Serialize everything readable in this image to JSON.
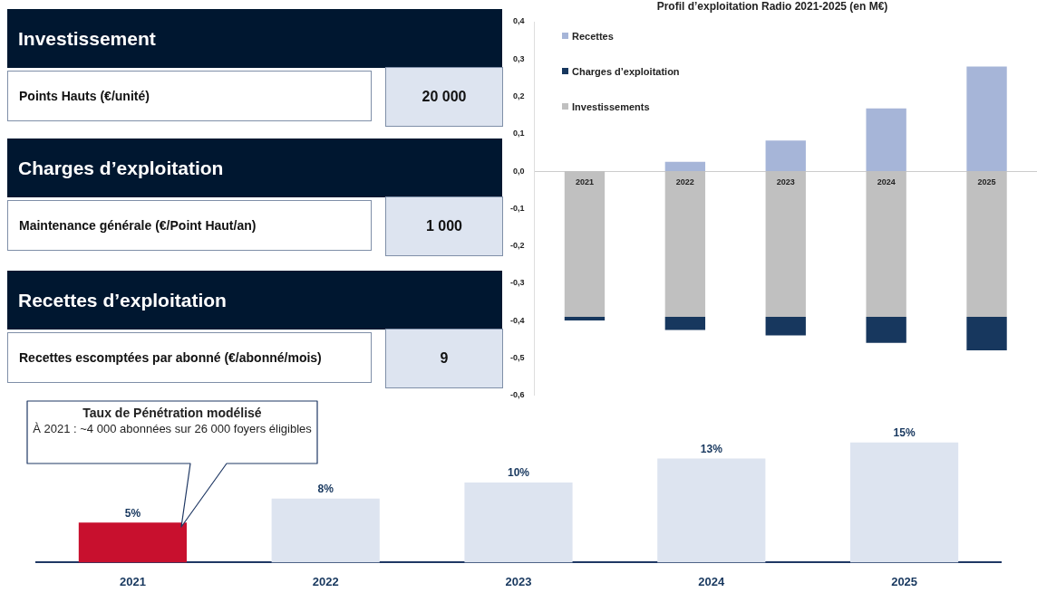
{
  "chart_data": [
    {
      "type": "other",
      "annotations": [
        "Investissement",
        "Points Hauts (€/unité)",
        "20 000",
        "Charges d’exploitation",
        "Maintenance générale (€/Point Haut/an)",
        "1 000",
        "Recettes d’exploitation",
        "Recettes escomptées par abonné (€/abonné/mois)",
        "9"
      ]
    },
    {
      "type": "bar",
      "title": "Profil d’exploitation Radio 2021-2025 (en M€)",
      "categories": [
        "2021",
        "2022",
        "2023",
        "2024",
        "2025"
      ],
      "stacked": true,
      "series": [
        {
          "name": "Investissements",
          "color": "#c0c0c0",
          "values": [
            -0.39,
            -0.39,
            -0.39,
            -0.39,
            -0.39
          ]
        },
        {
          "name": "Charges d’exploitation",
          "color": "#17375e",
          "values": [
            -0.01,
            -0.035,
            -0.05,
            -0.07,
            -0.09
          ]
        },
        {
          "name": "Recettes",
          "color": "#a6b5d8",
          "values": [
            0,
            0.025,
            0.082,
            0.168,
            0.28
          ]
        }
      ],
      "ylim": [
        -0.6,
        0.4
      ],
      "yticks": [
        {
          "value": -0.6,
          "label": "-0,6"
        },
        {
          "value": -0.5,
          "label": "-0,5"
        },
        {
          "value": -0.4,
          "label": "-0,4"
        },
        {
          "value": -0.3,
          "label": "-0,3"
        },
        {
          "value": -0.2,
          "label": "-0,2"
        },
        {
          "value": -0.1,
          "label": "-0,1"
        },
        {
          "value": 0,
          "label": "0,0"
        },
        {
          "value": 0.1,
          "label": "0,1"
        },
        {
          "value": 0.2,
          "label": "0,2"
        },
        {
          "value": 0.3,
          "label": "0,3"
        },
        {
          "value": 0.4,
          "label": "0,4"
        }
      ],
      "legend": "top left",
      "grid": false
    },
    {
      "type": "bar",
      "categories": [
        "2021",
        "2022",
        "2023",
        "2024",
        "2025"
      ],
      "values": [
        5,
        8,
        10,
        13,
        15
      ],
      "colors": [
        "#c8102e",
        "#dde4f0",
        "#dde4f0",
        "#dde4f0",
        "#dde4f0"
      ],
      "value_labels": [
        "5%",
        "8%",
        "10%",
        "13%",
        "15%"
      ],
      "annotations": [
        "Taux de Pénétration modélisé",
        "À 2021 : ~4 000 abonnées sur 26 000 foyers éligibles"
      ]
    }
  ]
}
